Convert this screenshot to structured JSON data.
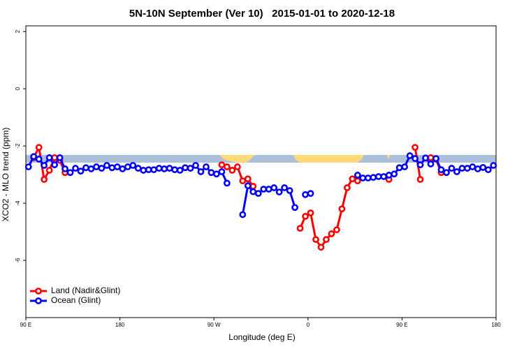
{
  "chart_data": {
    "type": "line",
    "title": "5N-10N September (Ver 10)   2015-01-01 to 2020-12-18",
    "x_label": "Longitude (deg E)",
    "y_label": "XCO2 - MLO trend (ppm)",
    "xlim": [
      90,
      540
    ],
    "ylim": [
      -8,
      2.2
    ],
    "xticks": [
      {
        "value": 90,
        "label": "90 E"
      },
      180,
      {
        "value": 270,
        "label": "90 W"
      },
      {
        "value": 360,
        "label": "0"
      },
      {
        "value": 450,
        "label": "90 E"
      },
      {
        "value": 540,
        "label": "180"
      }
    ],
    "yticks": [
      -6,
      -4,
      -2,
      0,
      2
    ],
    "legend": "bottom-left",
    "x": [
      92.5,
      97.5,
      102.5,
      107.5,
      112.5,
      117.5,
      122.5,
      127.5,
      132.5,
      137.5,
      142.5,
      147.5,
      152.5,
      157.5,
      162.5,
      167.5,
      172.5,
      177.5,
      182.5,
      187.5,
      192.5,
      197.5,
      202.5,
      207.5,
      212.5,
      217.5,
      222.5,
      227.5,
      232.5,
      237.5,
      242.5,
      247.5,
      252.5,
      257.5,
      262.5,
      267.5,
      272.5,
      277.5,
      282.5,
      287.5,
      292.5,
      297.5,
      302.5,
      307.5,
      312.5,
      317.5,
      322.5,
      327.5,
      332.5,
      337.5,
      342.5,
      347.5,
      352.5,
      357.5,
      362.5,
      367.5,
      372.5,
      377.5,
      382.5,
      387.5,
      392.5,
      397.5,
      402.5,
      407.5,
      412.5,
      417.5,
      422.5,
      427.5,
      432.5,
      437.5,
      442.5,
      447.5,
      452.5,
      457.5,
      462.5,
      467.5,
      472.5,
      477.5,
      482.5,
      487.5,
      492.5,
      497.5,
      502.5,
      507.5,
      512.5,
      517.5,
      522.5,
      527.5,
      532.5,
      537.5
    ],
    "series": [
      {
        "name": "Land (Nadir&Glint)",
        "color": "#ff0000",
        "values": [
          null,
          -2.41,
          -2.05,
          -3.17,
          -2.85,
          -2.41,
          -2.5,
          -2.93,
          null,
          null,
          null,
          null,
          null,
          null,
          null,
          null,
          null,
          null,
          null,
          null,
          null,
          null,
          null,
          null,
          null,
          null,
          null,
          null,
          null,
          null,
          null,
          null,
          null,
          null,
          null,
          null,
          null,
          -2.66,
          -2.73,
          -2.85,
          -2.73,
          -3.22,
          -3.15,
          -3.41,
          null,
          null,
          null,
          null,
          null,
          null,
          null,
          null,
          -4.88,
          -4.46,
          -4.34,
          -5.27,
          -5.54,
          -5.27,
          -5.07,
          -4.93,
          -4.2,
          -3.46,
          -3.15,
          -3.22,
          null,
          null,
          null,
          null,
          null,
          -3.17,
          null,
          null,
          null,
          null,
          -2.05,
          -3.17,
          null,
          -2.41,
          -2.46,
          -2.93,
          null,
          null,
          null,
          null,
          null,
          null,
          null,
          null,
          null,
          null
        ]
      },
      {
        "name": "Ocean (Glint)",
        "color": "#0000ff",
        "values": [
          -2.73,
          -2.37,
          -2.46,
          -2.68,
          -2.41,
          -2.66,
          -2.41,
          -2.8,
          -2.93,
          -2.78,
          -2.88,
          -2.76,
          -2.8,
          -2.73,
          -2.78,
          -2.68,
          -2.76,
          -2.73,
          -2.8,
          -2.73,
          -2.68,
          -2.78,
          -2.85,
          -2.83,
          -2.83,
          -2.78,
          -2.8,
          -2.78,
          -2.83,
          -2.85,
          -2.76,
          -2.78,
          -2.68,
          -2.9,
          -2.73,
          -2.93,
          -2.98,
          -2.9,
          -3.3,
          null,
          null,
          -4.4,
          -3.39,
          -3.6,
          -3.66,
          -3.51,
          -3.51,
          -3.46,
          -3.61,
          -3.46,
          -3.56,
          -4.15,
          null,
          -3.7,
          -3.66,
          null,
          null,
          null,
          null,
          null,
          null,
          null,
          null,
          -3.02,
          -3.12,
          -3.12,
          -3.1,
          -3.07,
          -3.07,
          -3.02,
          -2.98,
          -2.76,
          -2.73,
          -2.34,
          -2.44,
          -2.66,
          -2.42,
          -2.63,
          -2.44,
          -2.83,
          -2.93,
          -2.78,
          -2.9,
          -2.78,
          -2.78,
          -2.73,
          -2.8,
          -2.75,
          -2.83,
          -2.68
        ]
      }
    ]
  }
}
